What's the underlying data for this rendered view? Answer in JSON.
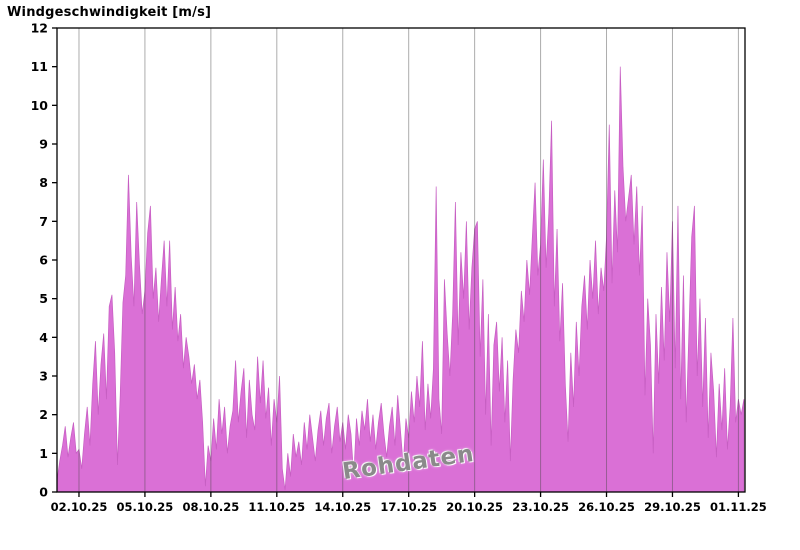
{
  "chart_data": {
    "type": "area",
    "title": "Windgeschwindigkeit [m/s]",
    "series_name": "Windgeschwindigkeit",
    "watermark": "Rohdaten",
    "fill_color": "#da70d6",
    "edge_color": "#c65ec2",
    "grid_color": "rgba(70,70,70,0.45)",
    "axis_color": "#000000",
    "ylim": [
      0,
      12
    ],
    "y_ticks": [
      0,
      1,
      2,
      3,
      4,
      5,
      6,
      7,
      8,
      9,
      10,
      11,
      12
    ],
    "x_range_days": [
      0,
      31.3
    ],
    "x_tick_days": [
      1,
      4,
      7,
      10,
      13,
      16,
      19,
      22,
      25,
      28,
      31
    ],
    "x_tick_labels": [
      "02.10.25",
      "05.10.25",
      "08.10.25",
      "11.10.25",
      "14.10.25",
      "17.10.25",
      "20.10.25",
      "23.10.25",
      "26.10.25",
      "29.10.25",
      "01.11.25"
    ],
    "grid_on": true,
    "legend": "none",
    "x_start_day": 0,
    "x_step_days": 0.125,
    "values": [
      0.3,
      0.8,
      1.2,
      1.7,
      0.9,
      1.4,
      1.8,
      1.0,
      1.1,
      0.6,
      1.5,
      2.2,
      1.2,
      2.8,
      3.9,
      2.0,
      3.3,
      4.1,
      2.4,
      4.8,
      5.1,
      3.6,
      0.7,
      2.5,
      4.9,
      5.6,
      8.2,
      6.1,
      4.8,
      7.5,
      5.9,
      4.6,
      5.2,
      6.7,
      7.4,
      5.0,
      5.8,
      4.4,
      5.5,
      6.5,
      4.8,
      6.5,
      4.2,
      5.3,
      3.9,
      4.6,
      3.2,
      4.0,
      3.5,
      2.8,
      3.3,
      2.4,
      2.9,
      1.8,
      0.15,
      1.2,
      0.8,
      1.9,
      1.1,
      2.4,
      1.5,
      2.2,
      1.0,
      1.7,
      2.1,
      3.4,
      1.8,
      2.6,
      3.2,
      1.4,
      2.9,
      2.0,
      1.6,
      3.5,
      2.3,
      3.4,
      1.9,
      2.7,
      1.2,
      2.4,
      1.8,
      3.0,
      0.6,
      0.05,
      1.0,
      0.4,
      1.5,
      0.9,
      1.3,
      0.7,
      1.8,
      1.1,
      2.0,
      1.4,
      0.8,
      1.6,
      2.1,
      1.2,
      1.9,
      2.3,
      1.0,
      1.7,
      2.2,
      1.3,
      1.8,
      1.1,
      2.0,
      1.5,
      0.4,
      1.9,
      1.2,
      2.1,
      1.6,
      2.4,
      1.3,
      2.0,
      1.1,
      1.8,
      2.3,
      1.5,
      0.9,
      1.7,
      2.2,
      1.2,
      2.5,
      1.6,
      0.7,
      1.9,
      1.4,
      2.6,
      1.8,
      3.0,
      2.2,
      3.9,
      1.6,
      2.8,
      1.9,
      3.2,
      7.9,
      2.4,
      1.5,
      5.5,
      4.1,
      3.0,
      4.6,
      7.5,
      3.8,
      6.2,
      5.0,
      7.0,
      4.2,
      5.8,
      6.8,
      7.0,
      3.5,
      5.5,
      2.0,
      4.6,
      1.2,
      3.8,
      4.4,
      2.6,
      4.0,
      1.8,
      3.4,
      0.8,
      2.9,
      4.2,
      3.6,
      5.2,
      4.4,
      6.0,
      5.1,
      6.6,
      8.0,
      5.6,
      6.4,
      8.6,
      5.8,
      7.2,
      9.6,
      4.8,
      6.8,
      3.9,
      5.4,
      2.8,
      1.3,
      3.6,
      2.2,
      4.4,
      3.0,
      4.8,
      5.6,
      4.2,
      6.0,
      5.0,
      6.5,
      4.6,
      5.8,
      5.2,
      6.6,
      9.5,
      5.4,
      7.8,
      6.2,
      11.0,
      8.4,
      7.0,
      7.6,
      8.2,
      6.4,
      7.9,
      5.6,
      7.4,
      2.5,
      5.0,
      3.8,
      1.0,
      4.6,
      2.8,
      5.3,
      3.4,
      6.2,
      4.4,
      7.0,
      3.2,
      7.4,
      2.4,
      5.6,
      1.8,
      4.2,
      6.6,
      7.4,
      3.0,
      5.0,
      2.2,
      4.5,
      1.4,
      3.6,
      2.6,
      0.9,
      2.8,
      1.6,
      3.2,
      1.1,
      2.2,
      4.5,
      1.8,
      2.4,
      2.0,
      2.4
    ]
  }
}
